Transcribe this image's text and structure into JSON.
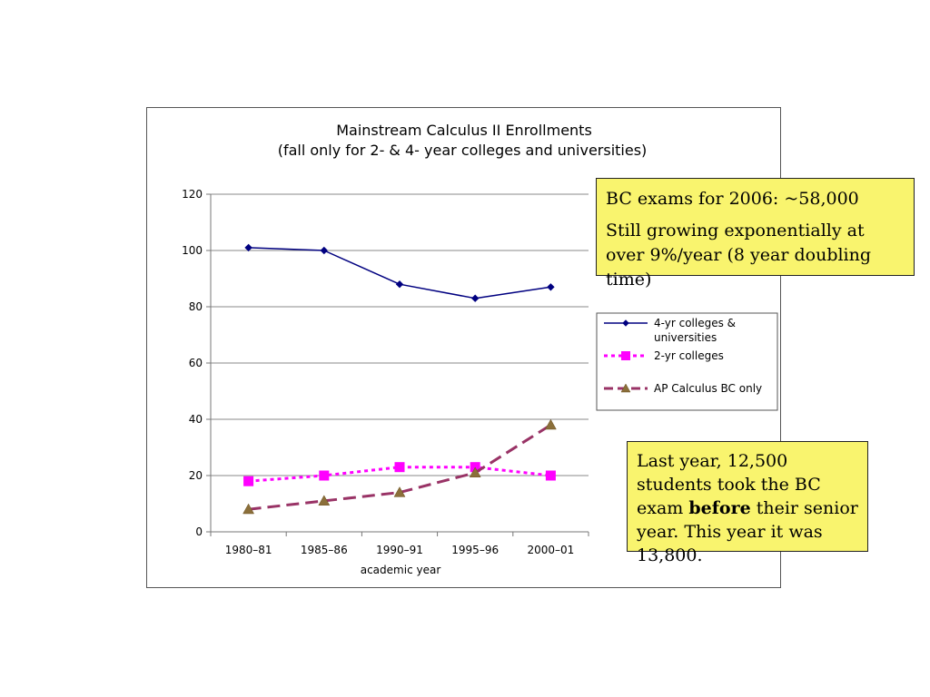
{
  "chart_data": {
    "type": "line",
    "title": "Mainstream Calculus II Enrollments",
    "subtitle": "(fall only for 2- & 4- year colleges and universities)",
    "xlabel": "academic year",
    "ylabel": "",
    "categories": [
      "1980–81",
      "1985–86",
      "1990–91",
      "1995–96",
      "2000–01"
    ],
    "ylim": [
      0,
      120
    ],
    "yticks": [
      0,
      20,
      40,
      60,
      80,
      100,
      120
    ],
    "grid": true,
    "legend_position": "right",
    "series": [
      {
        "name": "4-yr colleges & universities",
        "legend_lines": [
          "4-yr colleges &",
          "universities"
        ],
        "values": [
          101,
          100,
          88,
          83,
          87
        ],
        "color": "#000080",
        "marker": "diamond",
        "dash": "solid"
      },
      {
        "name": "2-yr colleges",
        "legend_lines": [
          "2-yr colleges"
        ],
        "values": [
          18,
          20,
          23,
          23,
          20
        ],
        "color": "#ff00ff",
        "marker": "square",
        "dash": "dotted"
      },
      {
        "name": "AP Calculus BC only",
        "legend_lines": [
          "AP Calculus BC only"
        ],
        "values": [
          8,
          11,
          14,
          21,
          38
        ],
        "color": "#993366",
        "marker": "triangle",
        "marker_color": "#8b6f3a",
        "dash": "dashed"
      }
    ]
  },
  "notes": {
    "bc_exams": {
      "line1": "BC exams for 2006: ~58,000",
      "line2": "Still growing exponentially at over 9%/year (8 year doubling time)"
    },
    "last_year": {
      "part1": "Last year, 12,500 students took the BC exam ",
      "bold": "before",
      "part2": " their senior year. This year it was 13,800."
    }
  },
  "colors": {
    "note_background": "#f9f46e",
    "gridline": "#888888"
  }
}
